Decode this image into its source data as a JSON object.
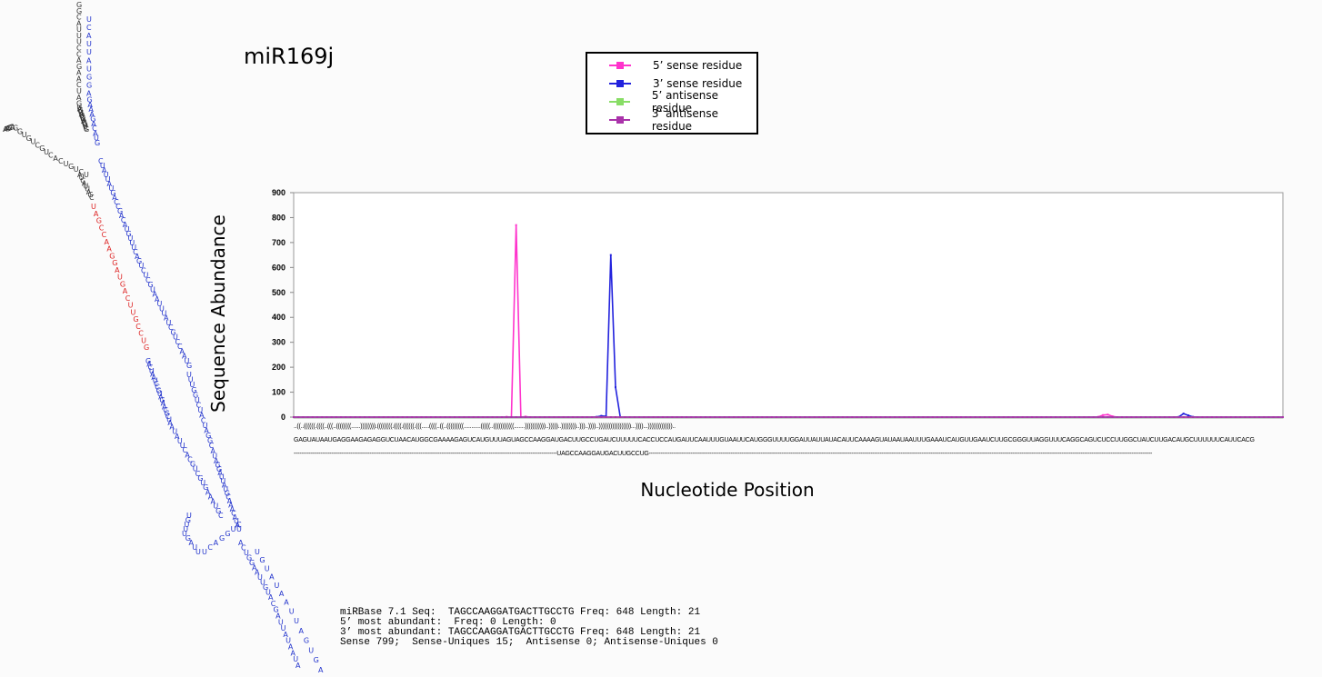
{
  "title": "miR169j",
  "legend": [
    {
      "label": "5’ sense residue",
      "color": "#ff33cc"
    },
    {
      "label": "3’ sense residue",
      "color": "#2222dd"
    },
    {
      "label": "5’ antisense residue",
      "color": "#88dd66"
    },
    {
      "label": "3’ antisense residue",
      "color": "#aa33aa"
    }
  ],
  "chart_data": {
    "type": "line",
    "title": "",
    "xlabel": "Nucleotide Position",
    "ylabel": "Sequence Abundance",
    "ylim": [
      0,
      900
    ],
    "yticks": [
      "0",
      "100",
      "200",
      "300",
      "400",
      "500",
      "600",
      "700",
      "800",
      "900"
    ],
    "grid": false,
    "n_positions": 210,
    "baseline": 0,
    "series": [
      {
        "color": "#ff33cc",
        "points": [
          [
            45,
            1
          ],
          [
            47,
            770
          ],
          [
            49,
            2
          ],
          [
            170,
            1
          ],
          [
            171,
            8
          ],
          [
            172,
            10
          ],
          [
            173,
            3
          ]
        ]
      },
      {
        "color": "#2222dd",
        "points": [
          [
            64,
            1
          ],
          [
            65,
            5
          ],
          [
            66,
            3
          ],
          [
            67,
            650
          ],
          [
            68,
            120
          ],
          [
            69,
            0
          ],
          [
            187,
            1
          ],
          [
            188,
            14
          ],
          [
            189,
            7
          ],
          [
            190,
            1
          ]
        ]
      },
      {
        "color": "#88dd66",
        "points": []
      },
      {
        "color": "#aa33aa",
        "points": []
      }
    ]
  },
  "sequence": {
    "structure": "..((..((((((.((((..(((..((((((((......)))))))).((((((((.((((.((((((.(((.....((((..((..(((((((((...........(((((..(((((((((((.......)))))))))))..)))))..))))))))..)))..))))..)))))))))))))))))...))))...)))))))))))))..",
    "genomic": "GAGUAUAAUGAGGAAGAGAGGUCUAACAUGGCGAAAAGAGUCAUGUUUAGUAGCCAAGGAUGACUUGCCUGAUCUUUUUCACCUCCAUGAUUCAAUUUGUAAUUCAUGGGUUUUGGAUUAUUAUACAUUCAAAAGUAUAAUAAUUUGAAAUCAUGUUGAAUCUUGCGGGUUAGGUUUCAGGCAGUCUCCUUGGCUAUCUUGACAUGCUUUUUUCAUUCACG",
    "mature_line": "-------------------------------------------------------------------------------------------------------------------------------------------UAGCCAAGGAUGACUUGCCUG--------------------------------------------------------------------------------------------------------------------------------------------------------------------------------------------------------------------------------------------------------------------------"
  },
  "hairpin_letters": {
    "left_arm": "GACUAAUCCGUAGAACGCUAAUAUUCACGUCGUGAAAUGCGGGUUAUCUAUGUCGACCG",
    "loop": "AAAGCCA",
    "mature_seq": "UAGCCAAGGAUGACUUGCCUG",
    "right_arm_upper": "CUAUUAUGACCGACAUGUUUCAGUCUCGUAAUUUAUCGUCCAAUG",
    "right_arm_lower": "UUUGGUCUACUAGGCAUAGGAUUAUGCAAACAUAUAAGCUAAGCUCAA",
    "tail": "ACUGGAAUUGUAC",
    "stem_top": "GGCAUUUCCAGAACUAGUAGCUAUGGGAGCUUCG"
  },
  "stats": [
    "miRBase 7.1 Seq:  TAGCCAAGGATGACTTGCCTG Freq: 648 Length: 21",
    "5’ most abundant:  Freq: 0 Length: 0",
    "3’ most abundant: TAGCCAAGGATGACTTGCCTG Freq: 648 Length: 21",
    "Sense 799;  Sense-Uniques 15;  Antisense 0; Antisense-Uniques 0"
  ]
}
